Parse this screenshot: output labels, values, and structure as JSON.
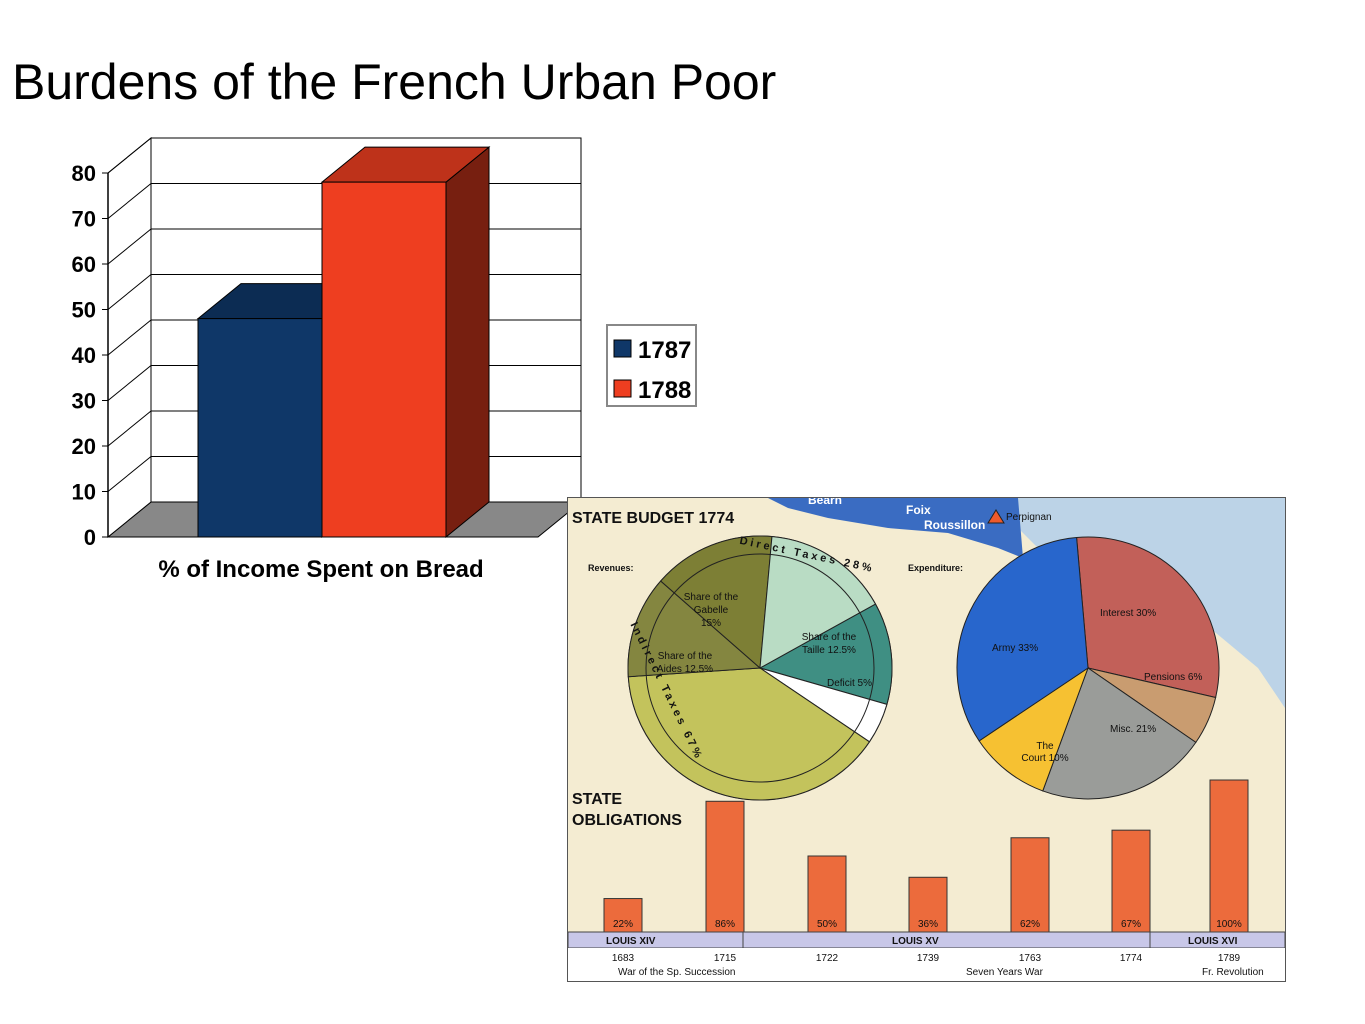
{
  "title": "Burdens of the French Urban Poor",
  "chart_data": [
    {
      "type": "bar",
      "categories": [
        "% of Income Spent on Bread"
      ],
      "series": [
        {
          "name": "1787",
          "values": [
            48
          ],
          "color": "#0f3768"
        },
        {
          "name": "1788",
          "values": [
            78
          ],
          "color": "#ee3e20"
        }
      ],
      "xlabel": "% of Income Spent on Bread",
      "ylabel": "",
      "ylim": [
        0,
        80
      ],
      "yticks": [
        0,
        10,
        20,
        30,
        40,
        50,
        60,
        70,
        80
      ],
      "grid": true,
      "legend_position": "right"
    },
    {
      "type": "pie",
      "title": "STATE BUDGET 1774",
      "subtitle": "Revenues:",
      "slices": [
        {
          "label": "Share of the Gabelle 15%",
          "value": 15,
          "color": "#7d7f35"
        },
        {
          "label": "Share of the Aides 12.5%",
          "value": 12.5,
          "color": "#848640"
        },
        {
          "label": "",
          "value": 39.5,
          "color": "#c3c35c"
        },
        {
          "label": "Deficit 5%",
          "value": 5,
          "color": "#ffffff"
        },
        {
          "label": "Share of the Taille 12.5%",
          "value": 12.5,
          "color": "#3f8f83"
        },
        {
          "label": "",
          "value": 15.5,
          "color": "#b9dcc4"
        }
      ],
      "annotations": [
        "Direct Taxes 28%",
        "Indirect Taxes 67%"
      ]
    },
    {
      "type": "pie",
      "subtitle": "Expenditure:",
      "slices": [
        {
          "label": "Interest 30%",
          "value": 30,
          "color": "#c26059"
        },
        {
          "label": "Pensions 6%",
          "value": 6,
          "color": "#c99c70"
        },
        {
          "label": "Misc. 21%",
          "value": 21,
          "color": "#9a9c99"
        },
        {
          "label": "The Court 10%",
          "value": 10,
          "color": "#f6c132"
        },
        {
          "label": "Army 33%",
          "value": 33,
          "color": "#2866cc"
        }
      ]
    },
    {
      "type": "bar",
      "title": "STATE OBLIGATIONS",
      "categories": [
        "1683",
        "1715",
        "1722",
        "1739",
        "1763",
        "1774",
        "1789"
      ],
      "values": [
        22,
        86,
        50,
        36,
        62,
        67,
        100
      ],
      "value_labels": [
        "22%",
        "86%",
        "50%",
        "36%",
        "62%",
        "67%",
        "100%"
      ],
      "reigns": [
        "LOUIS XIV",
        "LOUIS XV",
        "LOUIS XVI"
      ],
      "events": [
        "War of the Sp. Succession",
        "Seven Years War",
        "Fr. Revolution"
      ],
      "color": "#ec6b3c"
    }
  ],
  "map": {
    "labels": [
      "Bearn",
      "Foix",
      "Roussillon",
      "Perpignan"
    ]
  }
}
